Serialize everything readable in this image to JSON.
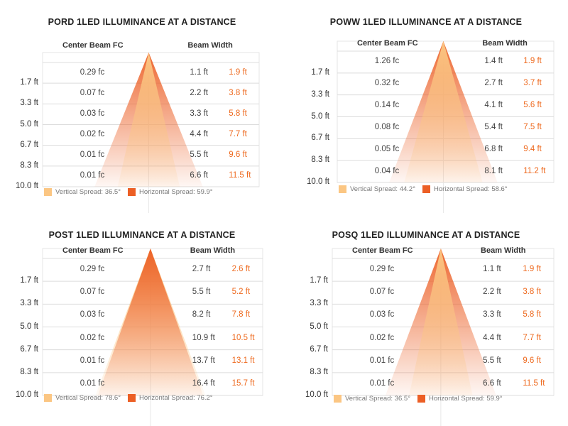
{
  "colors": {
    "vertical": "#fbc683",
    "horizontal": "#ec5f25",
    "hlabel": "#ee6a1f",
    "grid": "#dcdcdc",
    "panel_border": "#e6e6e6"
  },
  "common": {
    "center_beam_header": "Center Beam FC",
    "beam_width_header": "Beam Width",
    "distances": [
      "1.7 ft",
      "3.3 ft",
      "5.0 ft",
      "6.7 ft",
      "8.3 ft",
      "10.0 ft"
    ]
  },
  "chart_data": [
    {
      "type": "table",
      "title": "PORD 1LED ILLUMINANCE AT A DISTANCE",
      "distance_ft": [
        1.7,
        3.3,
        5.0,
        6.7,
        8.3,
        10.0
      ],
      "center_beam_fc": [
        "0.29 fc",
        "0.07 fc",
        "0.03 fc",
        "0.02 fc",
        "0.01 fc",
        "0.01 fc"
      ],
      "vertical_width": [
        "1.1 ft",
        "2.2 ft",
        "3.3 ft",
        "4.4 ft",
        "5.5 ft",
        "6.6 ft"
      ],
      "horizontal_width": [
        "1.9 ft",
        "3.8 ft",
        "5.8 ft",
        "7.7 ft",
        "9.6 ft",
        "11.5 ft"
      ],
      "vertical_spread": 36.5,
      "horizontal_spread": 59.9,
      "legend_vertical": "Vertical Spread: 36.5°",
      "legend_horizontal": "Horizontal Spread: 59.9°"
    },
    {
      "type": "table",
      "title": "POWW 1LED ILLUMINANCE AT A DISTANCE",
      "distance_ft": [
        1.7,
        3.3,
        5.0,
        6.7,
        8.3,
        10.0
      ],
      "center_beam_fc": [
        "1.26 fc",
        "0.32 fc",
        "0.14 fc",
        "0.08 fc",
        "0.05 fc",
        "0.04 fc"
      ],
      "vertical_width": [
        "1.4 ft",
        "2.7 ft",
        "4.1 ft",
        "5.4 ft",
        "6.8 ft",
        "8.1 ft"
      ],
      "horizontal_width": [
        "1.9 ft",
        "3.7 ft",
        "5.6 ft",
        "7.5 ft",
        "9.4 ft",
        "11.2 ft"
      ],
      "vertical_spread": 44.2,
      "horizontal_spread": 58.6,
      "legend_vertical": "Vertical Spread: 44.2°",
      "legend_horizontal": "Horizontal Spread: 58.6°"
    },
    {
      "type": "table",
      "title": "POST 1LED ILLUMINANCE AT A DISTANCE",
      "distance_ft": [
        1.7,
        3.3,
        5.0,
        6.7,
        8.3,
        10.0
      ],
      "center_beam_fc": [
        "0.29 fc",
        "0.07 fc",
        "0.03 fc",
        "0.02 fc",
        "0.01 fc",
        "0.01 fc"
      ],
      "vertical_width": [
        "2.7 ft",
        "5.5 ft",
        "8.2 ft",
        "10.9 ft",
        "13.7 ft",
        "16.4 ft"
      ],
      "horizontal_width": [
        "2.6 ft",
        "5.2 ft",
        "7.8 ft",
        "10.5 ft",
        "13.1 ft",
        "15.7 ft"
      ],
      "vertical_spread": 78.6,
      "horizontal_spread": 76.2,
      "legend_vertical": "Vertical Spread: 78.6°",
      "legend_horizontal": "Horizontal Spread: 76.2°"
    },
    {
      "type": "table",
      "title": "POSQ 1LED ILLUMINANCE AT A DISTANCE",
      "distance_ft": [
        1.7,
        3.3,
        5.0,
        6.7,
        8.3,
        10.0
      ],
      "center_beam_fc": [
        "0.29 fc",
        "0.07 fc",
        "0.03 fc",
        "0.02 fc",
        "0.01 fc",
        "0.01 fc"
      ],
      "vertical_width": [
        "1.1 ft",
        "2.2 ft",
        "3.3 ft",
        "4.4 ft",
        "5.5 ft",
        "6.6 ft"
      ],
      "horizontal_width": [
        "1.9 ft",
        "3.8 ft",
        "5.8 ft",
        "7.7 ft",
        "9.6 ft",
        "11.5 ft"
      ],
      "vertical_spread": 36.5,
      "horizontal_spread": 59.9,
      "legend_vertical": "Vertical Spread: 36.5°",
      "legend_horizontal": "Horizontal Spread: 59.9°"
    }
  ]
}
